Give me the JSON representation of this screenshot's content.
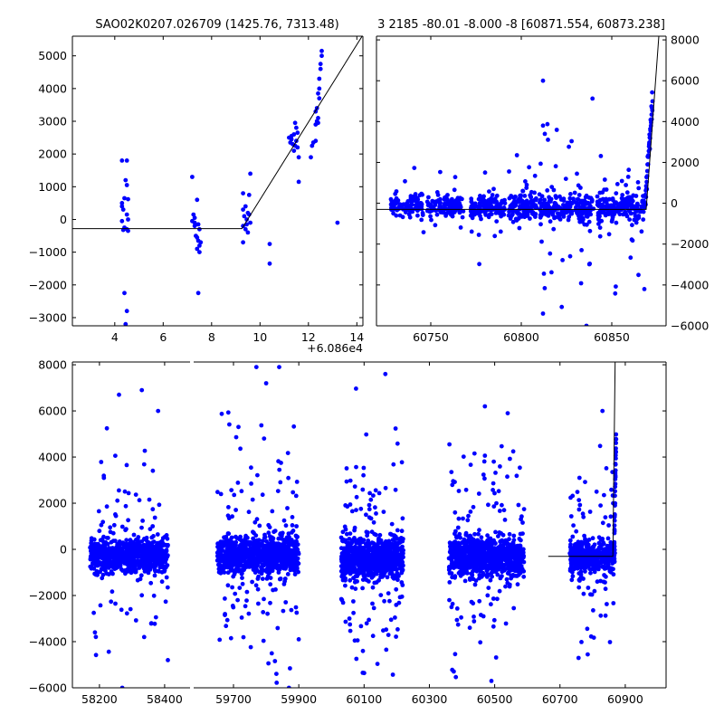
{
  "chart_data": [
    {
      "id": "top_left",
      "type": "scatter",
      "title": "SAO02K0207.026709 (1425.76, 7313.48)",
      "x_offset_label": "+6.086e4",
      "xlim": [
        2.25,
        14.25
      ],
      "ylim": [
        -3250,
        5600
      ],
      "xticks": [
        4,
        6,
        8,
        10,
        12,
        14
      ],
      "yticks": [
        -3000,
        -2000,
        -1000,
        0,
        1000,
        2000,
        3000,
        4000,
        5000
      ],
      "yaxis_side": "left",
      "color": "#0000ff",
      "points": [
        [
          4.3,
          1800
        ],
        [
          4.5,
          1800
        ],
        [
          4.45,
          1200
        ],
        [
          4.5,
          1050
        ],
        [
          4.4,
          650
        ],
        [
          4.55,
          620
        ],
        [
          4.3,
          400
        ],
        [
          4.35,
          300
        ],
        [
          4.5,
          150
        ],
        [
          4.3,
          -50
        ],
        [
          4.4,
          -250
        ],
        [
          4.5,
          -300
        ],
        [
          4.35,
          -320
        ],
        [
          4.55,
          -350
        ],
        [
          4.4,
          -2250
        ],
        [
          4.5,
          -2800
        ],
        [
          4.45,
          -3200
        ],
        [
          4.3,
          500
        ],
        [
          4.55,
          0
        ],
        [
          7.2,
          1300
        ],
        [
          7.4,
          600
        ],
        [
          7.25,
          150
        ],
        [
          7.3,
          50
        ],
        [
          7.2,
          -50
        ],
        [
          7.45,
          -150
        ],
        [
          7.3,
          -200
        ],
        [
          7.5,
          -300
        ],
        [
          7.35,
          -500
        ],
        [
          7.4,
          -550
        ],
        [
          7.45,
          -650
        ],
        [
          7.5,
          -800
        ],
        [
          7.4,
          -900
        ],
        [
          7.5,
          -1000
        ],
        [
          7.45,
          -2250
        ],
        [
          7.3,
          -100
        ],
        [
          7.55,
          -700
        ],
        [
          9.6,
          1400
        ],
        [
          9.3,
          800
        ],
        [
          9.55,
          750
        ],
        [
          9.4,
          400
        ],
        [
          9.3,
          300
        ],
        [
          9.5,
          200
        ],
        [
          9.35,
          100
        ],
        [
          9.45,
          0
        ],
        [
          9.6,
          -100
        ],
        [
          9.3,
          -200
        ],
        [
          9.4,
          -300
        ],
        [
          9.5,
          -400
        ],
        [
          9.3,
          -700
        ],
        [
          9.55,
          150
        ],
        [
          9.45,
          -150
        ],
        [
          10.4,
          -750
        ],
        [
          10.4,
          -1350
        ],
        [
          11.2,
          2500
        ],
        [
          11.3,
          2450
        ],
        [
          11.4,
          2600
        ],
        [
          11.45,
          2950
        ],
        [
          11.5,
          2800
        ],
        [
          11.35,
          2300
        ],
        [
          11.55,
          2200
        ],
        [
          11.4,
          2100
        ],
        [
          11.6,
          1900
        ],
        [
          11.5,
          2400
        ],
        [
          11.3,
          2550
        ],
        [
          11.6,
          1150
        ],
        [
          11.25,
          2350
        ],
        [
          11.45,
          2250
        ],
        [
          11.55,
          2650
        ],
        [
          12.1,
          1900
        ],
        [
          12.15,
          2250
        ],
        [
          12.2,
          2350
        ],
        [
          12.3,
          2400
        ],
        [
          12.3,
          2900
        ],
        [
          12.35,
          3000
        ],
        [
          12.4,
          3100
        ],
        [
          12.35,
          3400
        ],
        [
          12.4,
          3850
        ],
        [
          12.45,
          4000
        ],
        [
          12.45,
          4300
        ],
        [
          12.5,
          4600
        ],
        [
          12.5,
          4750
        ],
        [
          12.55,
          5000
        ],
        [
          12.55,
          5150
        ],
        [
          12.4,
          2950
        ],
        [
          12.3,
          3300
        ],
        [
          12.45,
          3700
        ],
        [
          13.2,
          -100
        ]
      ],
      "fit_line": [
        [
          2.25,
          -280
        ],
        [
          9.25,
          -280
        ],
        [
          14.25,
          5640
        ]
      ]
    },
    {
      "id": "top_right",
      "type": "scatter",
      "title": "3 2185 -80.01 -8.000 -8 [60871.554, 60873.238]",
      "xlim": [
        60720,
        60880
      ],
      "ylim": [
        -6000,
        8180
      ],
      "xticks": [
        60750,
        60800,
        60850
      ],
      "yticks": [
        -6000,
        -4000,
        -2000,
        0,
        2000,
        4000,
        6000,
        8000
      ],
      "yaxis_side": "right",
      "color": "#0000ff",
      "clusters": [
        {
          "x": [
            60728,
            60746
          ],
          "center": -150,
          "sd": 280,
          "n": 90,
          "outliers": 10,
          "out_sd": 900
        },
        {
          "x": [
            60748,
            60768
          ],
          "center": -150,
          "sd": 280,
          "n": 110,
          "outliers": 12,
          "out_sd": 900
        },
        {
          "x": [
            60772,
            60791
          ],
          "center": -200,
          "sd": 300,
          "n": 110,
          "outliers": 14,
          "out_sd": 1100
        },
        {
          "x": [
            60793,
            60809
          ],
          "center": -200,
          "sd": 300,
          "n": 110,
          "outliers": 14,
          "out_sd": 1300
        },
        {
          "x": [
            60810,
            60840
          ],
          "center": -250,
          "sd": 330,
          "n": 200,
          "outliers": 40,
          "out_sd": 2300
        },
        {
          "x": [
            60842,
            60868
          ],
          "center": -200,
          "sd": 330,
          "n": 170,
          "outliers": 30,
          "out_sd": 1800
        }
      ],
      "ramp": {
        "x": [
          60868.5,
          60872.5
        ],
        "y": [
          0,
          5100
        ],
        "n": 40
      },
      "points": [
        [
          60812,
          6000
        ],
        [
          60812,
          3800
        ],
        [
          60813,
          3400
        ],
        [
          60836,
          -6000
        ],
        [
          60812,
          -5400
        ],
        [
          60868,
          -4200
        ],
        [
          60780,
          1500
        ],
        [
          60803,
          900
        ]
      ],
      "fit_line": [
        [
          60720,
          -300
        ],
        [
          60869,
          -300
        ],
        [
          60876,
          8180
        ]
      ]
    },
    {
      "id": "bottom",
      "type": "scatter",
      "broken_x_axis": true,
      "segments": [
        {
          "xlim": [
            58117,
            58478
          ],
          "xticks": [
            58200,
            58400
          ]
        },
        {
          "xlim": [
            59578,
            61025
          ],
          "xticks": [
            59700,
            59900,
            60100,
            60300,
            60500,
            60700,
            60900
          ]
        }
      ],
      "ylim": [
        -6000,
        8120
      ],
      "yticks": [
        -6000,
        -4000,
        -2000,
        0,
        2000,
        4000,
        6000,
        8000
      ],
      "color": "#0000ff",
      "clusters": [
        {
          "x": [
            58170,
            58410
          ],
          "center": -250,
          "sd": 380,
          "n": 700,
          "outliers": 90,
          "out_sd": 2200
        },
        {
          "x": [
            59650,
            59900
          ],
          "center": -250,
          "sd": 400,
          "n": 800,
          "outliers": 130,
          "out_sd": 2600
        },
        {
          "x": [
            60030,
            60220
          ],
          "center": -400,
          "sd": 420,
          "n": 800,
          "outliers": 130,
          "out_sd": 2500
        },
        {
          "x": [
            60360,
            60590
          ],
          "center": -300,
          "sd": 420,
          "n": 800,
          "outliers": 130,
          "out_sd": 2500
        },
        {
          "x": [
            60730,
            60868
          ],
          "center": -300,
          "sd": 330,
          "n": 400,
          "outliers": 80,
          "out_sd": 2400
        }
      ],
      "ramp": {
        "x": [
          60866,
          60872
        ],
        "y": [
          0,
          5100
        ],
        "n": 35
      },
      "points": [
        [
          58260,
          6700
        ],
        [
          58330,
          6900
        ],
        [
          58380,
          6000
        ],
        [
          59770,
          7900
        ],
        [
          59840,
          7900
        ],
        [
          59800,
          7200
        ],
        [
          60165,
          7600
        ],
        [
          60470,
          6200
        ],
        [
          60540,
          5900
        ],
        [
          60830,
          6000
        ],
        [
          58270,
          -6000
        ],
        [
          58410,
          -4800
        ],
        [
          60490,
          -5700
        ],
        [
          59870,
          -6000
        ]
      ],
      "fit_line_segments": [
        [
          [
            60664,
            -300
          ],
          [
            60862,
            -300
          ],
          [
            60869,
            8120
          ]
        ]
      ]
    }
  ]
}
